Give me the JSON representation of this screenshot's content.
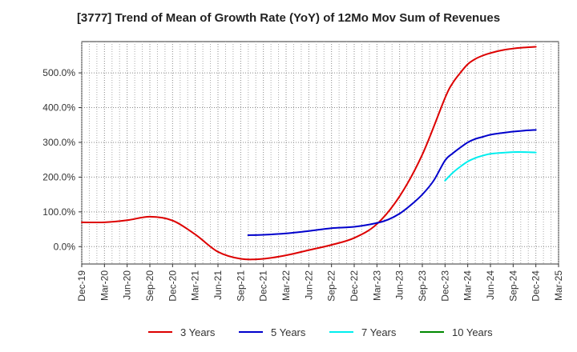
{
  "chart_data": {
    "type": "line",
    "title": "[3777]  Trend of Mean of Growth Rate (YoY) of 12Mo Mov Sum of Revenues",
    "xlabel": "",
    "ylabel": "",
    "ylim": [
      -50,
      590
    ],
    "y_ticks": [
      0,
      100,
      200,
      300,
      400,
      500
    ],
    "y_tick_labels": [
      "0.0%",
      "100.0%",
      "200.0%",
      "300.0%",
      "400.0%",
      "500.0%"
    ],
    "x_tick_labels": [
      "Dec-19",
      "Mar-20",
      "Jun-20",
      "Sep-20",
      "Dec-20",
      "Mar-21",
      "Jun-21",
      "Sep-21",
      "Dec-21",
      "Mar-22",
      "Jun-22",
      "Sep-22",
      "Dec-22",
      "Mar-23",
      "Jun-23",
      "Sep-23",
      "Dec-23",
      "Mar-24",
      "Jun-24",
      "Sep-24",
      "Dec-24",
      "Mar-25"
    ],
    "x_range": [
      0,
      21
    ],
    "series": [
      {
        "name": "3 Years",
        "color": "#dd0000",
        "x": [
          0,
          1,
          2,
          3,
          4,
          5,
          6,
          7,
          8,
          9,
          10,
          11,
          12,
          13,
          14,
          15,
          16,
          16.33,
          16.67,
          17,
          17.33,
          17.67,
          18,
          18.5,
          19,
          19.5,
          20
        ],
        "values": [
          70,
          70,
          76,
          86,
          75,
          35,
          -15,
          -35,
          -35,
          -25,
          -10,
          5,
          25,
          65,
          145,
          265,
          428,
          470,
          500,
          525,
          540,
          550,
          557,
          565,
          570,
          573,
          575
        ]
      },
      {
        "name": "5 Years",
        "color": "#0000cc",
        "x": [
          7.33,
          8,
          9,
          10,
          11,
          12,
          13,
          13.5,
          14,
          14.5,
          15,
          15.5,
          16,
          16.33,
          16.67,
          17,
          17.33,
          17.67,
          18,
          18.5,
          19,
          19.5,
          20
        ],
        "values": [
          33,
          34,
          38,
          45,
          53,
          57,
          68,
          78,
          95,
          120,
          150,
          190,
          248,
          268,
          285,
          300,
          310,
          316,
          322,
          327,
          331,
          334,
          336
        ]
      },
      {
        "name": "7 Years",
        "color": "#00eeee",
        "x": [
          16,
          16.33,
          16.67,
          17,
          17.33,
          17.67,
          18,
          18.5,
          19,
          19.5,
          20
        ],
        "values": [
          190,
          212,
          230,
          245,
          255,
          262,
          267,
          270,
          272,
          272,
          271
        ]
      },
      {
        "name": "10 Years",
        "color": "#008800",
        "x": [],
        "values": []
      }
    ]
  }
}
